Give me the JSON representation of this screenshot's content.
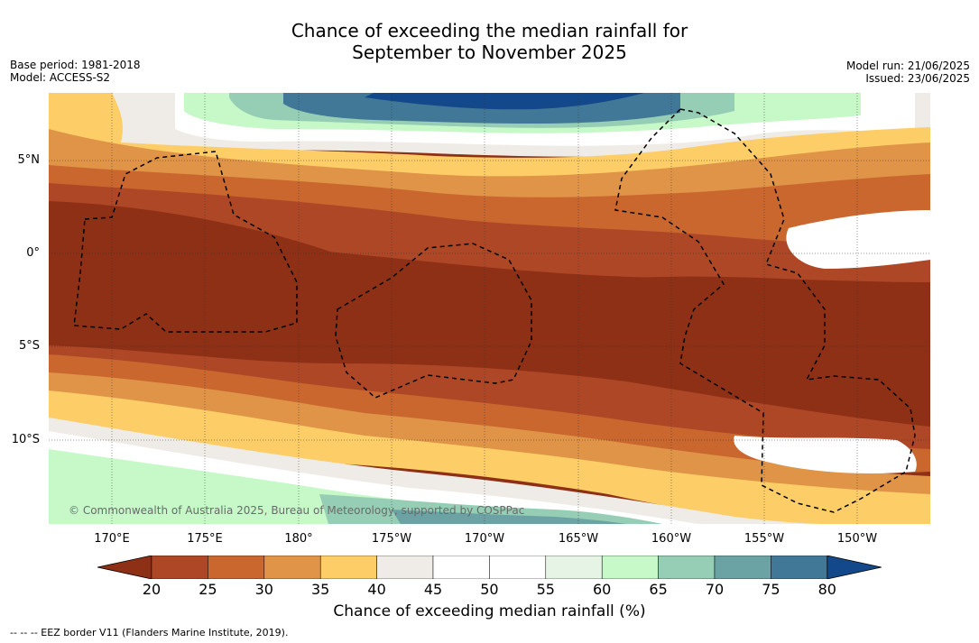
{
  "title": {
    "line1": "Chance of exceeding the median rainfall for",
    "line2": "September to November 2025"
  },
  "meta": {
    "base_period": "Base period: 1981-2018",
    "model": "Model: ACCESS-S2",
    "model_run": "Model run: 21/06/2025",
    "issued": "Issued: 23/06/2025"
  },
  "map": {
    "lat_labels": [
      "5°N",
      "0°",
      "5°S",
      "10°S"
    ],
    "lon_labels": [
      "170°E",
      "175°E",
      "180°",
      "175°W",
      "170°W",
      "165°W",
      "160°W",
      "155°W",
      "150°W"
    ],
    "copyright": "© Commonwealth of Australia 2025, Bureau of Meteorology, supported by COSPPac",
    "bands": [
      {
        "level": "55-60",
        "note": "northern edge"
      },
      {
        "level": "30-40",
        "note": "near 5N"
      },
      {
        "level": "<20",
        "note": "equatorial dry tongue"
      },
      {
        "level": "30-40",
        "note": "near 8S"
      },
      {
        "level": "60-75",
        "note": "southern edge"
      }
    ]
  },
  "colorbar": {
    "ticks": [
      "20",
      "25",
      "30",
      "35",
      "40",
      "45",
      "50",
      "55",
      "60",
      "65",
      "70",
      "75",
      "80"
    ],
    "colors": [
      "#8e3016",
      "#ae4726",
      "#c9672f",
      "#e09447",
      "#fdcd67",
      "#efebe6",
      "#ffffff",
      "#ffffff",
      "#e6f4e6",
      "#c6f8c8",
      "#96ceb5",
      "#6ba2a4",
      "#427897",
      "#13488a"
    ],
    "title": "Chance of exceeding median rainfall (%)"
  },
  "footer": "--  --  -- EEZ border V11 (Flanders Marine Institute, 2019)."
}
